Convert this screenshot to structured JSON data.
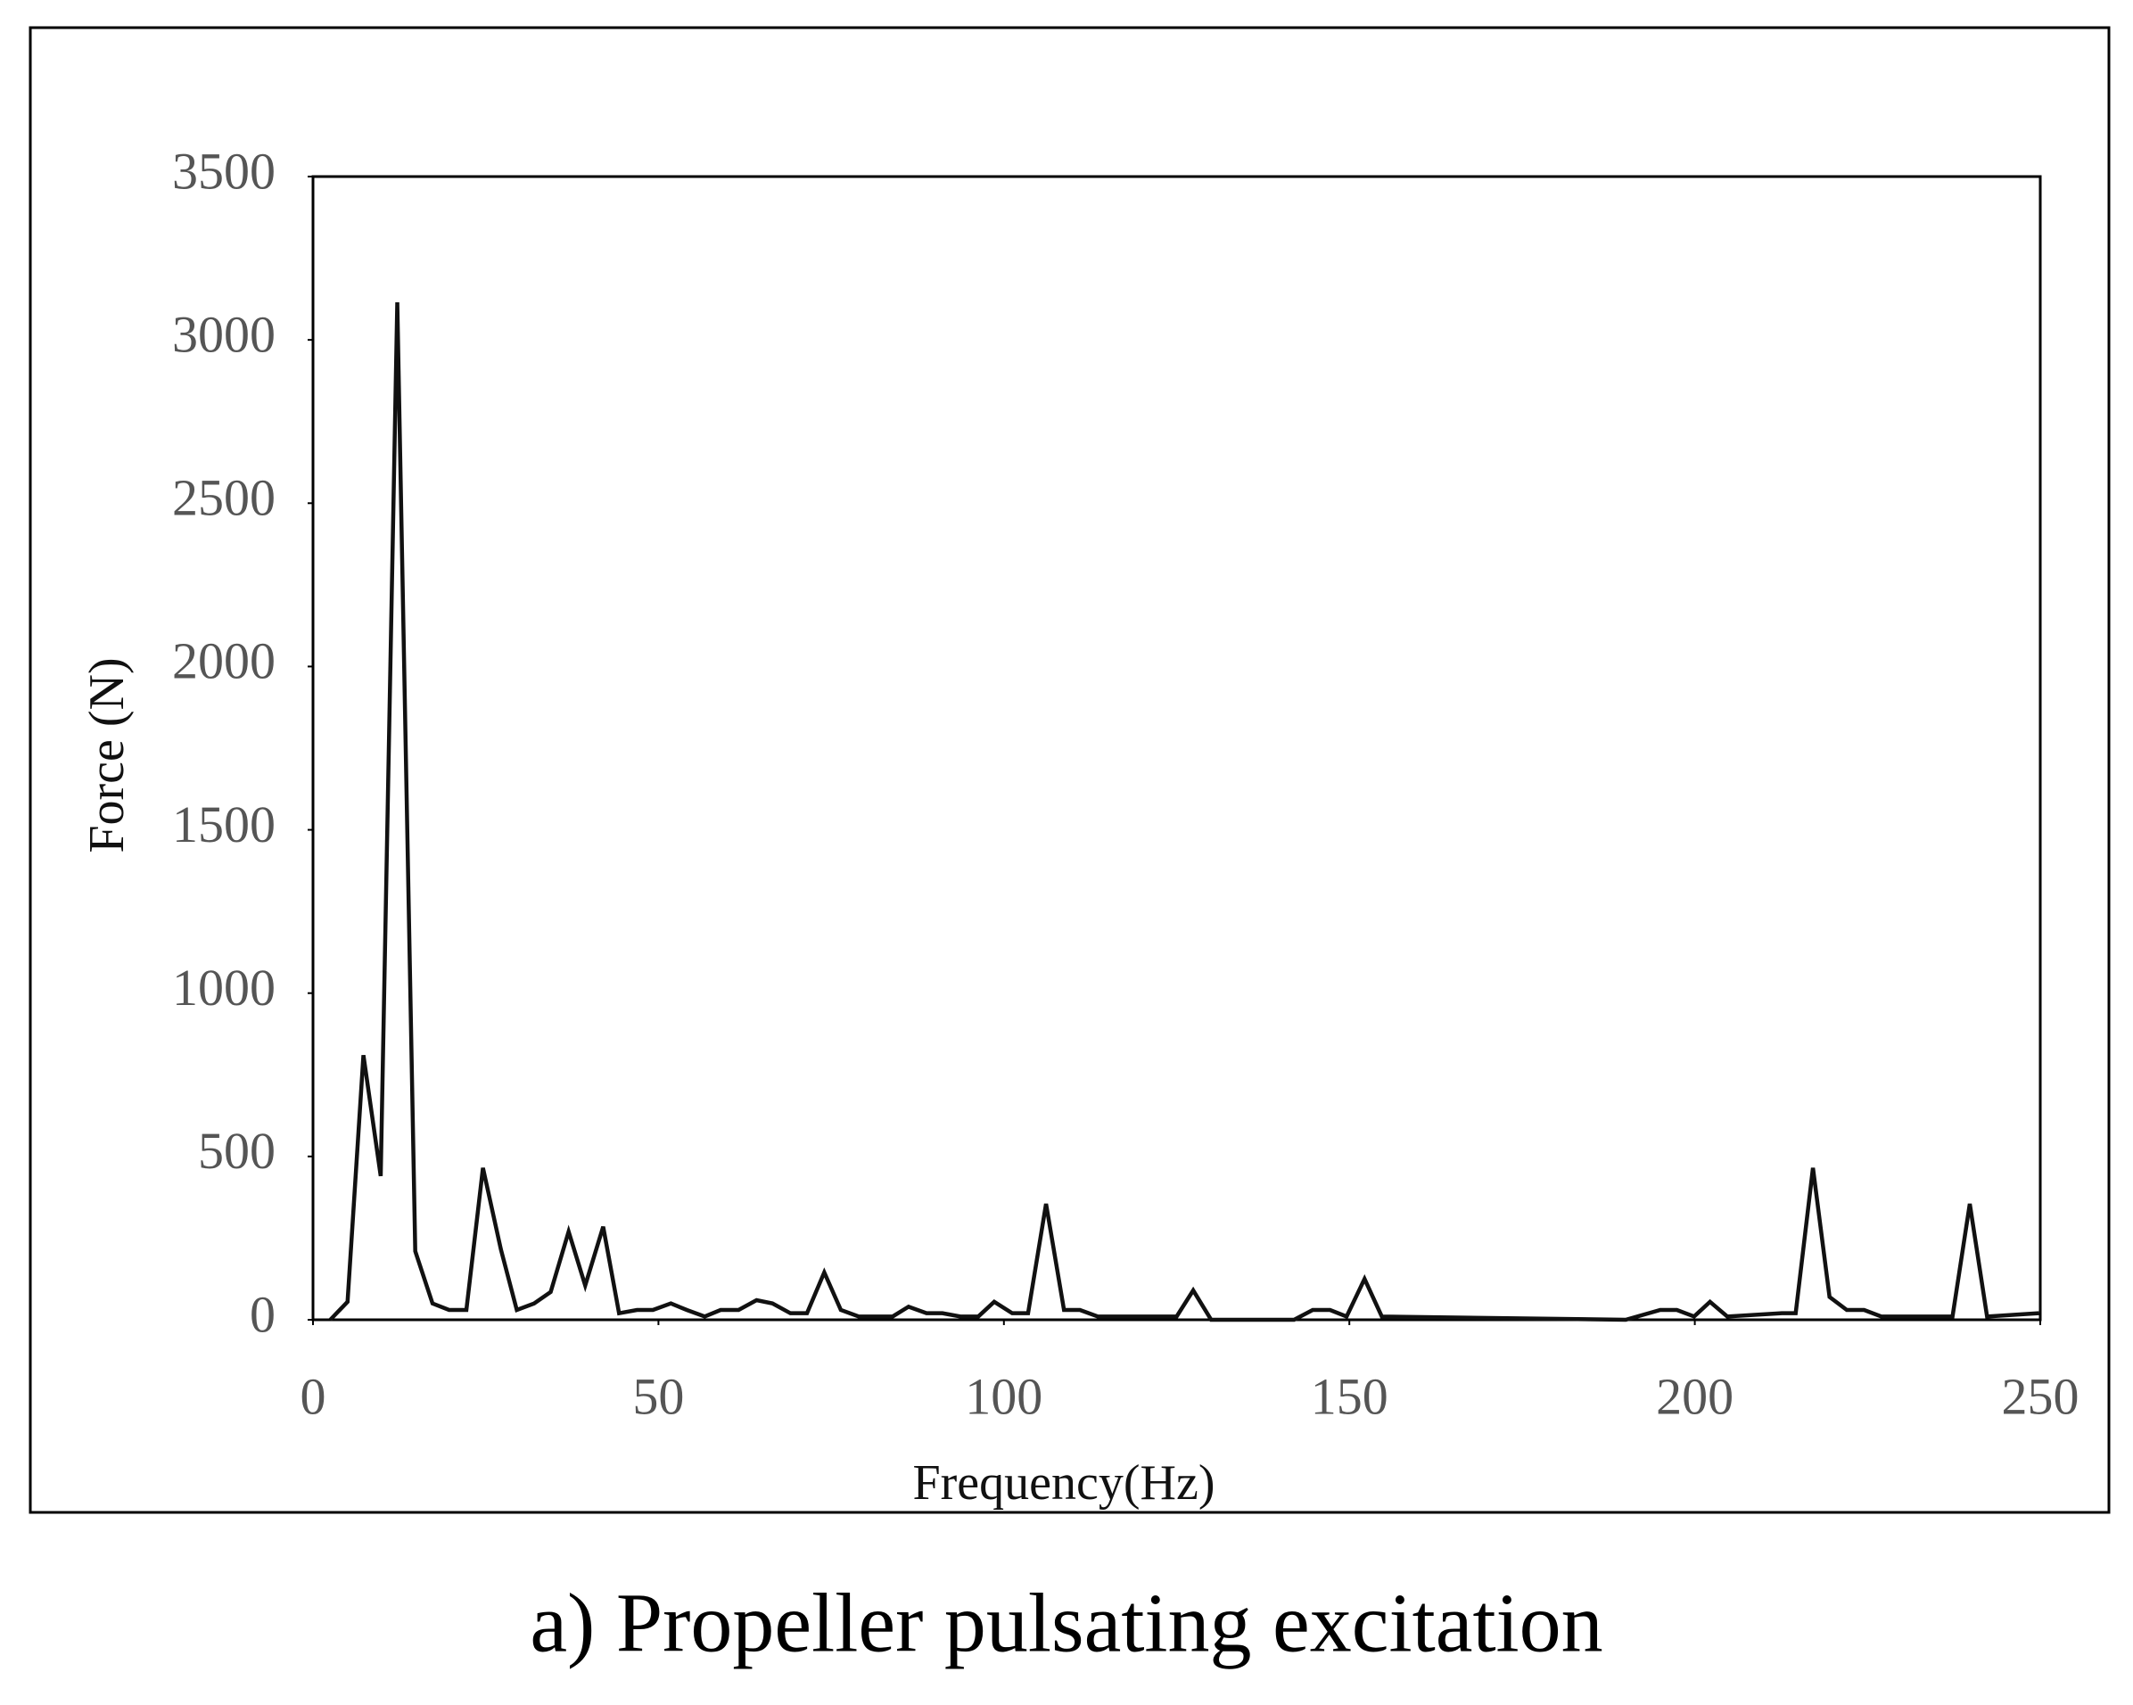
{
  "chart_data": {
    "type": "line",
    "caption": "a) Propeller pulsating excitation",
    "x_label": "Frequency(Hz)",
    "y_label": "Force (N)",
    "xlim": [
      0,
      250
    ],
    "xticks": [
      0,
      50,
      100,
      150,
      200,
      250
    ],
    "ylim": [
      0,
      3500
    ],
    "yticks": [
      0,
      500,
      1000,
      1500,
      2000,
      2500,
      3000,
      3500
    ],
    "grid": false,
    "series": [
      {
        "color": "#111111",
        "x": [
          2.5,
          5,
          7.3,
          9.8,
          12.2,
          14.8,
          17.3,
          19.7,
          22.2,
          24.6,
          27.2,
          29.5,
          32,
          34.4,
          37,
          39.4,
          42,
          44.3,
          46.9,
          49.2,
          51.8,
          54.1,
          56.7,
          59,
          61.6,
          64.2,
          66.5,
          69.1,
          71.5,
          74,
          76.4,
          79,
          81.3,
          83.9,
          86.2,
          88.8,
          91.1,
          93.7,
          96.3,
          98.6,
          101.2,
          103.5,
          106.1,
          108.7,
          111,
          113.6,
          125,
          127.4,
          130,
          142,
          144.7,
          147.2,
          149.6,
          152.2,
          154.7,
          190,
          195,
          197.4,
          199.9,
          202.2,
          204.7,
          212.6,
          214.6,
          217.1,
          219.5,
          222,
          224.5,
          227,
          229.4,
          237.3,
          239.8,
          242.3,
          249.8
        ],
        "values": [
          0,
          55,
          810,
          440,
          3115,
          210,
          50,
          30,
          30,
          465,
          215,
          30,
          50,
          85,
          270,
          105,
          285,
          20,
          30,
          30,
          50,
          30,
          10,
          30,
          30,
          60,
          50,
          20,
          20,
          145,
          30,
          10,
          10,
          10,
          40,
          20,
          20,
          10,
          10,
          55,
          20,
          20,
          355,
          30,
          30,
          10,
          10,
          90,
          0,
          0,
          30,
          30,
          10,
          125,
          10,
          0,
          30,
          30,
          10,
          55,
          10,
          20,
          20,
          465,
          70,
          30,
          30,
          10,
          10,
          10,
          355,
          10,
          20
        ]
      }
    ]
  }
}
